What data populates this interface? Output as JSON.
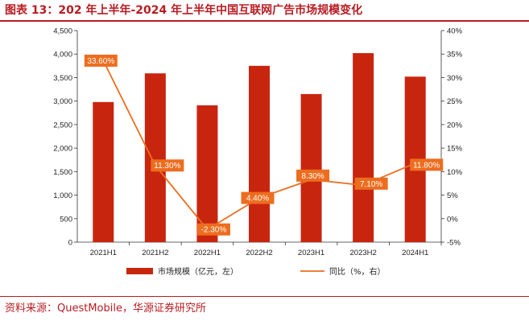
{
  "header": {
    "title": "图表 13：202 年上半年-2024 年上半年中国互联网广告市场规模变化"
  },
  "footer": {
    "source": "资料来源：QuestMobile，华源证券研究所"
  },
  "colors": {
    "bar": "#c8250f",
    "line": "#ed6d1f",
    "label_bg": "#ed6d1f",
    "accent": "#b81c22"
  },
  "chart_data": {
    "type": "bar",
    "categories": [
      "2021H1",
      "2021H2",
      "2022H1",
      "2022H2",
      "2023H1",
      "2023H2",
      "2024H1"
    ],
    "series": [
      {
        "name": "市场规模（亿元，左）",
        "type": "bar",
        "axis": "left",
        "values": [
          2980,
          3590,
          2910,
          3750,
          3150,
          4020,
          3520
        ]
      },
      {
        "name": "同比（%，右）",
        "type": "line",
        "axis": "right",
        "values": [
          33.6,
          11.3,
          -2.3,
          4.4,
          8.3,
          7.1,
          11.8
        ],
        "labels": [
          "33.60%",
          "11.30%",
          "-2.30%",
          "4.40%",
          "8.30%",
          "7.10%",
          "11.80%"
        ]
      }
    ],
    "y_left": {
      "range": [
        0,
        4500
      ],
      "ticks": [
        0,
        500,
        1000,
        1500,
        2000,
        2500,
        3000,
        3500,
        4000,
        4500
      ],
      "tick_labels": [
        "0",
        "500",
        "1,000",
        "1,500",
        "2,000",
        "2,500",
        "3,000",
        "3,500",
        "4,000",
        "4,500"
      ]
    },
    "y_right": {
      "range": [
        -5,
        40
      ],
      "ticks": [
        -5,
        0,
        5,
        10,
        15,
        20,
        25,
        30,
        35,
        40
      ],
      "tick_labels": [
        "-5%",
        "0%",
        "5%",
        "10%",
        "15%",
        "20%",
        "25%",
        "30%",
        "35%",
        "40%"
      ]
    },
    "grid": false,
    "legend_position": "bottom"
  }
}
